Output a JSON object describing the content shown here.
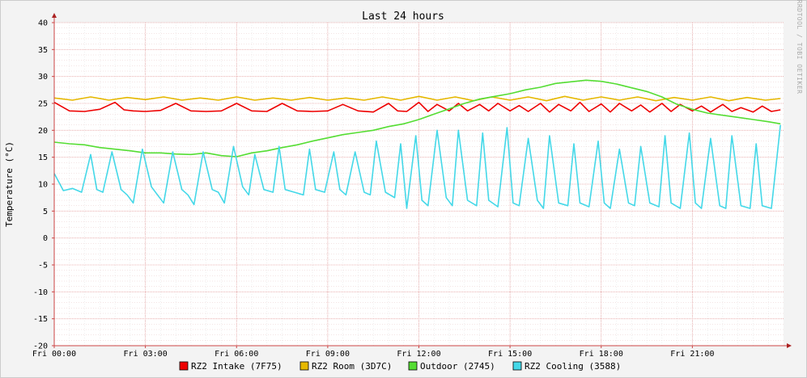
{
  "chart_data": {
    "type": "line",
    "title": "Last 24 hours",
    "ylabel": "Temperature (°C)",
    "xlabel": "",
    "watermark": "RRDTOOL / TOBI OETIKER",
    "ylim": [
      -20,
      40
    ],
    "yticks": [
      40,
      35,
      30,
      25,
      20,
      15,
      10,
      5,
      0,
      -5,
      -10,
      -15,
      -20
    ],
    "xlim": [
      0,
      24
    ],
    "xticks": [
      {
        "value": 0,
        "label": "Fri 00:00"
      },
      {
        "value": 3,
        "label": "Fri 03:00"
      },
      {
        "value": 6,
        "label": "Fri 06:00"
      },
      {
        "value": 9,
        "label": "Fri 09:00"
      },
      {
        "value": 12,
        "label": "Fri 12:00"
      },
      {
        "value": 15,
        "label": "Fri 15:00"
      },
      {
        "value": 18,
        "label": "Fri 18:00"
      },
      {
        "value": 21,
        "label": "Fri 21:00"
      }
    ],
    "grid": true,
    "legend_position": "bottom",
    "x_unit": "hours",
    "series": [
      {
        "name": "RZ2 Intake (7F75)",
        "color": "#ee0000",
        "x": [
          0,
          0.5,
          1,
          1.5,
          2,
          2.3,
          2.6,
          3,
          3.5,
          4,
          4.5,
          5,
          5.5,
          6,
          6.5,
          7,
          7.5,
          8,
          8.5,
          9,
          9.5,
          10,
          10.5,
          11,
          11.3,
          11.6,
          12,
          12.3,
          12.6,
          13,
          13.3,
          13.6,
          14,
          14.3,
          14.6,
          15,
          15.3,
          15.6,
          16,
          16.3,
          16.6,
          17,
          17.3,
          17.6,
          18,
          18.3,
          18.6,
          19,
          19.3,
          19.6,
          20,
          20.3,
          20.6,
          21,
          21.3,
          21.6,
          22,
          22.3,
          22.6,
          23,
          23.3,
          23.6,
          23.9
        ],
        "y": [
          25.2,
          23.6,
          23.5,
          23.9,
          25.2,
          23.8,
          23.6,
          23.5,
          23.7,
          25.0,
          23.6,
          23.5,
          23.6,
          25.0,
          23.6,
          23.5,
          25.0,
          23.6,
          23.5,
          23.6,
          24.8,
          23.6,
          23.4,
          25.0,
          23.6,
          23.5,
          25.2,
          23.5,
          24.8,
          23.6,
          25.0,
          23.6,
          24.8,
          23.6,
          25.0,
          23.6,
          24.6,
          23.5,
          25.0,
          23.4,
          24.8,
          23.6,
          25.2,
          23.5,
          24.9,
          23.4,
          25.0,
          23.6,
          24.7,
          23.4,
          25.0,
          23.5,
          24.8,
          23.6,
          24.5,
          23.4,
          24.8,
          23.5,
          24.2,
          23.4,
          24.5,
          23.5,
          23.8
        ]
      },
      {
        "name": "RZ2 Room (3D7C)",
        "color": "#e6b800",
        "x": [
          0,
          0.6,
          1.2,
          1.8,
          2.4,
          3,
          3.6,
          4.2,
          4.8,
          5.4,
          6,
          6.6,
          7.2,
          7.8,
          8.4,
          9,
          9.6,
          10.2,
          10.8,
          11.4,
          12,
          12.6,
          13.2,
          13.8,
          14.4,
          15,
          15.6,
          16.2,
          16.8,
          17.4,
          18,
          18.6,
          19.2,
          19.8,
          20.4,
          21,
          21.6,
          22.2,
          22.8,
          23.4,
          23.9
        ],
        "y": [
          26.0,
          25.6,
          26.2,
          25.6,
          26.1,
          25.7,
          26.2,
          25.6,
          26.0,
          25.6,
          26.2,
          25.6,
          26.0,
          25.6,
          26.1,
          25.6,
          26.0,
          25.6,
          26.2,
          25.6,
          26.3,
          25.6,
          26.2,
          25.5,
          26.2,
          25.6,
          26.2,
          25.5,
          26.3,
          25.6,
          26.2,
          25.6,
          26.2,
          25.5,
          26.1,
          25.6,
          26.2,
          25.5,
          26.1,
          25.6,
          25.9
        ]
      },
      {
        "name": "Outdoor (2745)",
        "color": "#55dd33",
        "x": [
          0,
          0.5,
          1,
          1.5,
          2,
          2.5,
          3,
          3.5,
          4,
          4.5,
          5,
          5.5,
          6,
          6.5,
          7,
          7.5,
          8,
          8.5,
          9,
          9.5,
          10,
          10.5,
          11,
          11.5,
          12,
          12.5,
          13,
          13.5,
          14,
          14.5,
          15,
          15.5,
          16,
          16.5,
          17,
          17.5,
          18,
          18.5,
          19,
          19.5,
          20,
          20.5,
          21,
          21.5,
          22,
          22.5,
          23,
          23.5,
          23.9
        ],
        "y": [
          17.8,
          17.5,
          17.3,
          16.8,
          16.5,
          16.2,
          15.8,
          15.8,
          15.6,
          15.5,
          15.8,
          15.3,
          15.1,
          15.8,
          16.2,
          16.8,
          17.3,
          18.0,
          18.6,
          19.2,
          19.6,
          20.0,
          20.7,
          21.2,
          22.0,
          23.0,
          24.0,
          25.0,
          25.8,
          26.3,
          26.8,
          27.5,
          28.0,
          28.7,
          29.0,
          29.3,
          29.1,
          28.6,
          27.9,
          27.2,
          26.2,
          24.8,
          23.9,
          23.2,
          22.8,
          22.4,
          22.0,
          21.6,
          21.2
        ]
      },
      {
        "name": "RZ2 Cooling (3588)",
        "color": "#44d8e8",
        "x": [
          0,
          0.3,
          0.6,
          0.9,
          1.2,
          1.4,
          1.6,
          1.9,
          2.2,
          2.4,
          2.6,
          2.9,
          3.2,
          3.4,
          3.6,
          3.9,
          4.2,
          4.4,
          4.6,
          4.9,
          5.2,
          5.4,
          5.6,
          5.9,
          6.2,
          6.4,
          6.6,
          6.9,
          7.2,
          7.4,
          7.6,
          7.9,
          8.2,
          8.4,
          8.6,
          8.9,
          9.2,
          9.4,
          9.6,
          9.9,
          10.2,
          10.4,
          10.6,
          10.9,
          11.2,
          11.4,
          11.6,
          11.9,
          12.1,
          12.3,
          12.6,
          12.9,
          13.1,
          13.3,
          13.6,
          13.9,
          14.1,
          14.3,
          14.6,
          14.9,
          15.1,
          15.3,
          15.6,
          15.9,
          16.1,
          16.3,
          16.6,
          16.9,
          17.1,
          17.3,
          17.6,
          17.9,
          18.1,
          18.3,
          18.6,
          18.9,
          19.1,
          19.3,
          19.6,
          19.9,
          20.1,
          20.3,
          20.6,
          20.9,
          21.1,
          21.3,
          21.6,
          21.9,
          22.1,
          22.3,
          22.6,
          22.9,
          23.1,
          23.3,
          23.6,
          23.9
        ],
        "y": [
          12.0,
          8.8,
          9.2,
          8.5,
          15.5,
          9.0,
          8.5,
          16.0,
          9.0,
          8.0,
          6.5,
          16.5,
          9.5,
          8.0,
          6.5,
          16.0,
          9.0,
          8.0,
          6.2,
          16.0,
          9.0,
          8.5,
          6.5,
          17.0,
          9.5,
          8.0,
          15.5,
          9.0,
          8.5,
          17.0,
          9.0,
          8.5,
          8.0,
          16.5,
          9.0,
          8.5,
          16.0,
          9.0,
          8.0,
          16.0,
          8.5,
          8.0,
          18.0,
          8.5,
          7.5,
          17.5,
          5.5,
          19.0,
          7.0,
          6.0,
          20.0,
          7.5,
          6.0,
          20.0,
          7.0,
          6.0,
          19.5,
          7.0,
          5.8,
          20.5,
          6.5,
          6.0,
          18.5,
          7.0,
          5.5,
          19.0,
          6.5,
          6.0,
          17.5,
          6.5,
          5.8,
          18.0,
          6.5,
          5.5,
          16.5,
          6.5,
          6.0,
          17.0,
          6.5,
          5.8,
          19.0,
          6.5,
          5.5,
          19.5,
          6.5,
          5.5,
          18.5,
          6.0,
          5.5,
          19.0,
          6.0,
          5.5,
          17.5,
          6.0,
          5.5,
          21.0
        ]
      }
    ]
  }
}
